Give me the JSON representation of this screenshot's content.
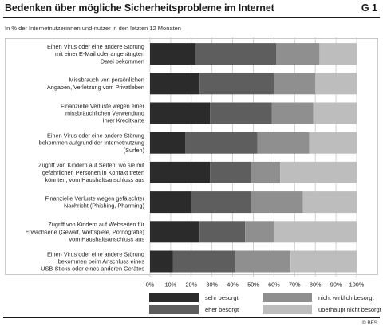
{
  "header": {
    "title": "Bedenken über mögliche Sicherheitsprobleme im Internet",
    "figure_id": "G 1",
    "subtitle": "In % der Internetnutzerinnen und-nutzer in den letzten 12 Monaten",
    "source": "© BFS"
  },
  "colors": {
    "sehr_besorgt": "#2b2b2b",
    "eher_besorgt": "#5e5e5e",
    "nicht_wirklich_besorgt": "#8f8f8f",
    "ueberhaupt_nicht_besorgt": "#bdbdbd"
  },
  "chart_data": {
    "type": "bar",
    "orientation": "horizontal",
    "stacked": true,
    "xlim": [
      0,
      100
    ],
    "x_ticks": [
      "0%",
      "10%",
      "20%",
      "30%",
      "40%",
      "50%",
      "60%",
      "70%",
      "80%",
      "90%",
      "100%"
    ],
    "grid": true,
    "legend_position": "bottom",
    "categories": [
      [
        "Einen Virus oder eine andere Störung",
        "mit einer E-Mail oder angehängten",
        "Datei bekommen"
      ],
      [
        "Missbrauch von persönlichen",
        "Angaben, Verletzung vom Privatleben"
      ],
      [
        "Finanzielle Verluste wegen einer",
        "missbräuchlichen Verwendung",
        "Ihrer Kreditkarte"
      ],
      [
        "Einen Virus oder eine andere Störung",
        "bekommen aufgrund der Internetnutzung",
        "(Surfen)"
      ],
      [
        "Zugriff von Kindern auf Seiten, wo sie mit",
        "gefährlichen Personen in Kontakt treten",
        "könnten, vom Haushaltsanschluss aus"
      ],
      [
        "Finanzielle Verluste wegen gefälschter",
        "Nachricht (Phishing, Pharming)"
      ],
      [
        "Zugriff von Kindern auf Webseiten für",
        "Erwachsene (Gewalt, Wettspiele, Pornografie)",
        "vom Haushaltsanschluss aus"
      ],
      [
        "Einen Virus oder eine andere Störung",
        "bekommen beim Anschluss eines",
        "USB-Sticks oder eines anderen Gerätes"
      ]
    ],
    "series": [
      {
        "name": "sehr besorgt",
        "values": [
          22,
          24,
          29,
          17,
          29,
          20,
          24,
          11
        ]
      },
      {
        "name": "eher besorgt",
        "values": [
          39,
          36,
          30,
          35,
          20,
          29,
          22,
          30
        ]
      },
      {
        "name": "nicht wirklich besorgt",
        "values": [
          21,
          20,
          20,
          25,
          14,
          25,
          14,
          27
        ]
      },
      {
        "name": "überhaupt nicht besorgt",
        "values": [
          18,
          20,
          21,
          23,
          37,
          26,
          40,
          32
        ]
      }
    ]
  }
}
